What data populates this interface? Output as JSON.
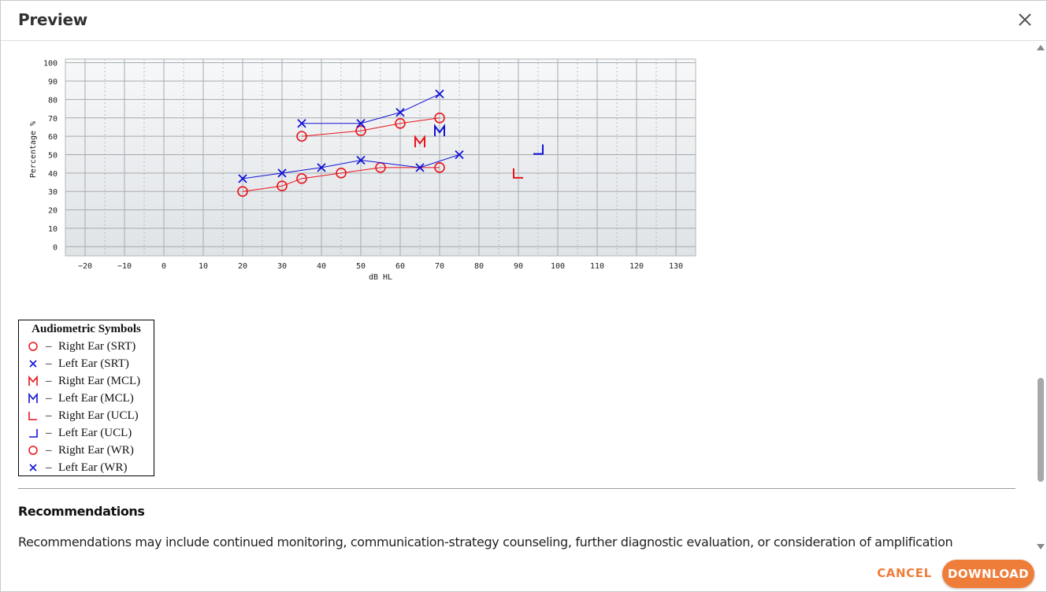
{
  "dialog": {
    "title": "Preview",
    "close_icon": "close-icon"
  },
  "chart_data": {
    "type": "scatter",
    "xlabel": "dB HL",
    "ylabel": "Percentage %",
    "xlim": [
      -25,
      135
    ],
    "ylim": [
      -5,
      102
    ],
    "x_ticks": [
      -20,
      -10,
      0,
      10,
      20,
      30,
      40,
      50,
      60,
      70,
      80,
      90,
      100,
      110,
      120,
      130
    ],
    "y_ticks": [
      0,
      10,
      20,
      30,
      40,
      50,
      60,
      70,
      80,
      90,
      100
    ],
    "grid": true,
    "series": [
      {
        "marker": "circle",
        "color": "#e8141b",
        "connected": true,
        "points": [
          [
            35,
            60
          ],
          [
            50,
            63
          ],
          [
            60,
            67
          ],
          [
            70,
            70
          ]
        ]
      },
      {
        "marker": "x",
        "color": "#1212d4",
        "connected": true,
        "points": [
          [
            35,
            67
          ],
          [
            50,
            67
          ],
          [
            60,
            73
          ],
          [
            70,
            83
          ]
        ]
      },
      {
        "marker": "circle",
        "color": "#e8141b",
        "connected": true,
        "points": [
          [
            20,
            30
          ],
          [
            30,
            33
          ],
          [
            35,
            37
          ],
          [
            45,
            40
          ],
          [
            55,
            43
          ],
          [
            70,
            43
          ]
        ]
      },
      {
        "marker": "x",
        "color": "#1212d4",
        "connected": true,
        "points": [
          [
            20,
            37
          ],
          [
            30,
            40
          ],
          [
            40,
            43
          ],
          [
            50,
            47
          ],
          [
            65,
            43
          ],
          [
            75,
            50
          ]
        ]
      },
      {
        "marker": "M",
        "color": "#e8141b",
        "connected": false,
        "points": [
          [
            65,
            57
          ]
        ]
      },
      {
        "marker": "M",
        "color": "#1212d4",
        "connected": false,
        "points": [
          [
            70,
            63
          ]
        ]
      },
      {
        "marker": "L-right",
        "color": "#e8141b",
        "connected": false,
        "points": [
          [
            90,
            40
          ]
        ]
      },
      {
        "marker": "L-left",
        "color": "#1212d4",
        "connected": false,
        "points": [
          [
            95,
            53
          ]
        ]
      }
    ]
  },
  "legend": {
    "title": "Audiometric Symbols",
    "dash": "–",
    "items": [
      {
        "symbol": "circle",
        "color": "#e8141b",
        "label": "Right Ear (SRT)"
      },
      {
        "symbol": "x",
        "color": "#1212d4",
        "label": "Left Ear (SRT)"
      },
      {
        "symbol": "M",
        "color": "#e8141b",
        "label": "Right Ear (MCL)"
      },
      {
        "symbol": "M",
        "color": "#1212d4",
        "label": "Left Ear (MCL)"
      },
      {
        "symbol": "L-right",
        "color": "#e8141b",
        "label": "Right Ear (UCL)"
      },
      {
        "symbol": "L-left",
        "color": "#1212d4",
        "label": "Left Ear (UCL)"
      },
      {
        "symbol": "circle",
        "color": "#e8141b",
        "label": "Right Ear (WR)"
      },
      {
        "symbol": "x",
        "color": "#1212d4",
        "label": "Left Ear (WR)"
      }
    ]
  },
  "recommendations": {
    "title": "Recommendations",
    "text": "Recommendations may include continued monitoring, communication-strategy counseling, further diagnostic evaluation, or consideration of amplification depending"
  },
  "footer": {
    "cancel_label": "CANCEL",
    "download_label": "DOWNLOAD"
  },
  "colors": {
    "accent": "#ef7d3a",
    "right_ear": "#e8141b",
    "left_ear": "#1212d4"
  }
}
